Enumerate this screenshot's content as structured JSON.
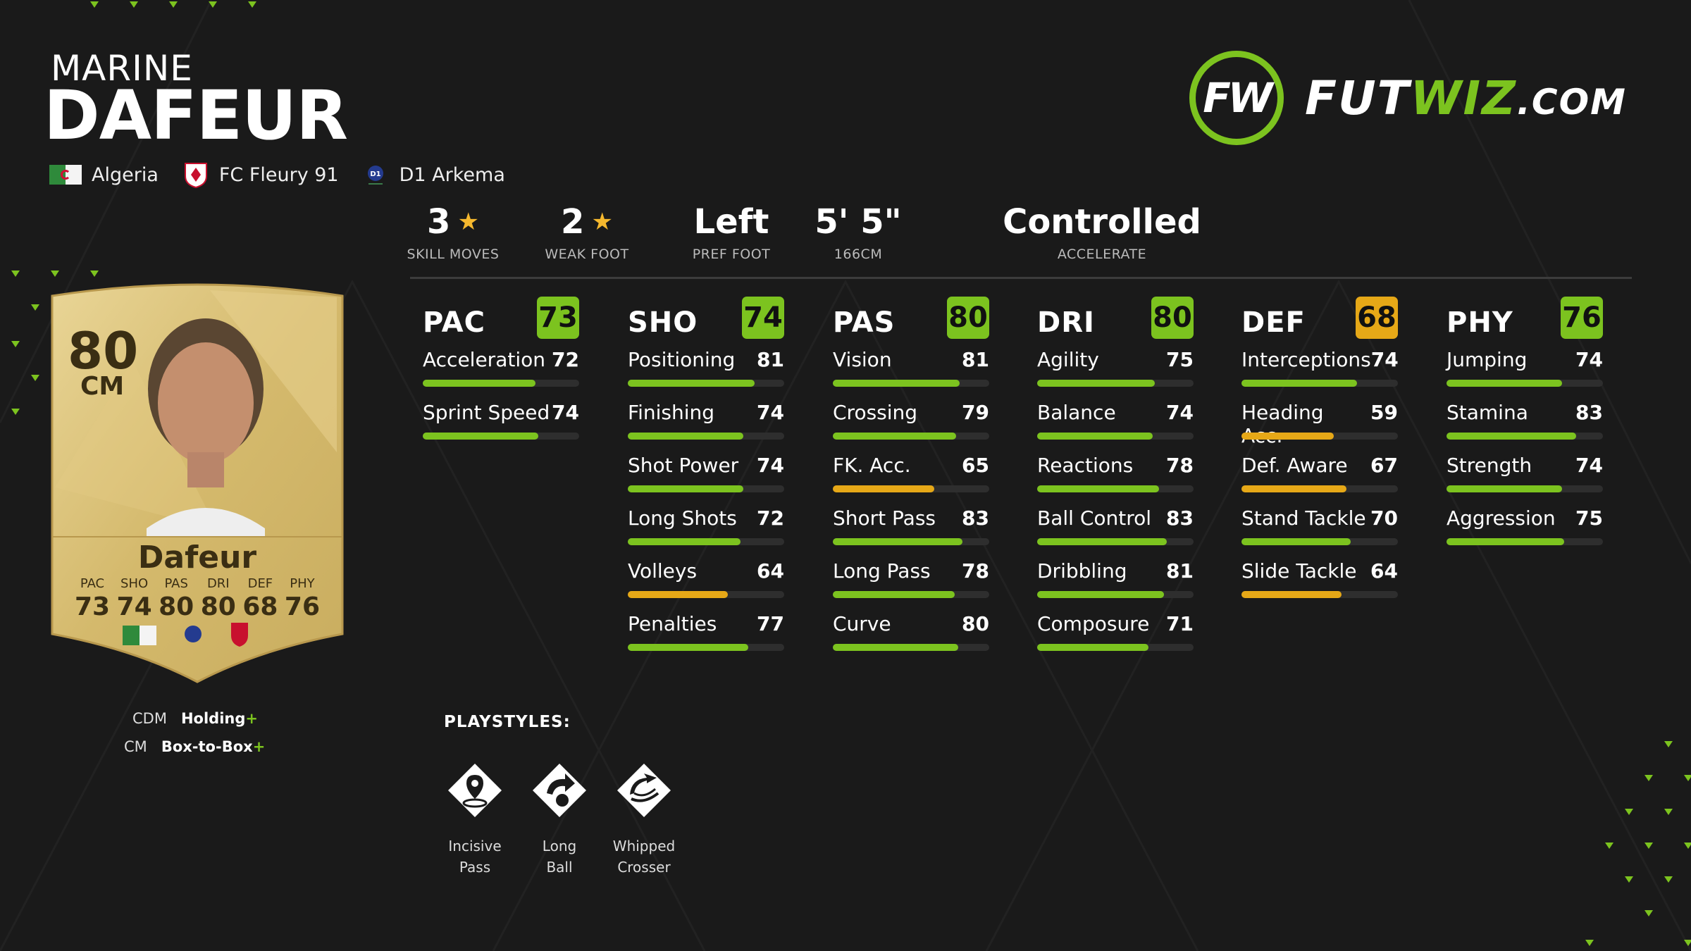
{
  "player": {
    "first_name": "MARINE",
    "last_name": "DAFEUR",
    "nation": "Algeria",
    "club": "FC Fleury 91",
    "league": "D1 Arkema"
  },
  "logo": {
    "brand_a": "FUT",
    "brand_b": "WIZ",
    "brand_c": ".COM",
    "badge": "FW"
  },
  "info": [
    {
      "value": "3",
      "star": true,
      "label": "SKILL MOVES"
    },
    {
      "value": "2",
      "star": true,
      "label": "WEAK FOOT"
    },
    {
      "value": "Left",
      "star": false,
      "label": "PREF FOOT"
    },
    {
      "value": "5' 5\"",
      "star": false,
      "label": "166CM"
    },
    {
      "value": "Controlled",
      "star": false,
      "label": "ACCELERATE"
    }
  ],
  "colors": {
    "green": "#7cc31f",
    "amber": "#e6a817",
    "gold": "#d9bf74"
  },
  "attributes": [
    {
      "name": "PAC",
      "value": 73,
      "stats": [
        {
          "label": "Acceleration",
          "value": 72
        },
        {
          "label": "Sprint Speed",
          "value": 74
        }
      ]
    },
    {
      "name": "SHO",
      "value": 74,
      "stats": [
        {
          "label": "Positioning",
          "value": 81
        },
        {
          "label": "Finishing",
          "value": 74
        },
        {
          "label": "Shot Power",
          "value": 74
        },
        {
          "label": "Long Shots",
          "value": 72
        },
        {
          "label": "Volleys",
          "value": 64
        },
        {
          "label": "Penalties",
          "value": 77
        }
      ]
    },
    {
      "name": "PAS",
      "value": 80,
      "stats": [
        {
          "label": "Vision",
          "value": 81
        },
        {
          "label": "Crossing",
          "value": 79
        },
        {
          "label": "FK. Acc.",
          "value": 65
        },
        {
          "label": "Short Pass",
          "value": 83
        },
        {
          "label": "Long Pass",
          "value": 78
        },
        {
          "label": "Curve",
          "value": 80
        }
      ]
    },
    {
      "name": "DRI",
      "value": 80,
      "stats": [
        {
          "label": "Agility",
          "value": 75
        },
        {
          "label": "Balance",
          "value": 74
        },
        {
          "label": "Reactions",
          "value": 78
        },
        {
          "label": "Ball Control",
          "value": 83
        },
        {
          "label": "Dribbling",
          "value": 81
        },
        {
          "label": "Composure",
          "value": 71
        }
      ]
    },
    {
      "name": "DEF",
      "value": 68,
      "stats": [
        {
          "label": "Interceptions",
          "value": 74
        },
        {
          "label": "Heading Acc.",
          "value": 59
        },
        {
          "label": "Def. Aware",
          "value": 67
        },
        {
          "label": "Stand Tackle",
          "value": 70
        },
        {
          "label": "Slide Tackle",
          "value": 64
        }
      ]
    },
    {
      "name": "PHY",
      "value": 76,
      "stats": [
        {
          "label": "Jumping",
          "value": 74
        },
        {
          "label": "Stamina",
          "value": 83
        },
        {
          "label": "Strength",
          "value": 74
        },
        {
          "label": "Aggression",
          "value": 75
        }
      ]
    }
  ],
  "card": {
    "rating": "80",
    "position": "CM",
    "name": "Dafeur",
    "stats": [
      {
        "label": "PAC",
        "value": "73"
      },
      {
        "label": "SHO",
        "value": "74"
      },
      {
        "label": "PAS",
        "value": "80"
      },
      {
        "label": "DRI",
        "value": "80"
      },
      {
        "label": "DEF",
        "value": "68"
      },
      {
        "label": "PHY",
        "value": "76"
      }
    ]
  },
  "roles": [
    {
      "position": "CDM",
      "role": "Holding",
      "plus": "+"
    },
    {
      "position": "CM",
      "role": "Box-to-Box",
      "plus": "+"
    }
  ],
  "playstyles_title": "PLAYSTYLES:",
  "playstyles": [
    {
      "line1": "Incisive",
      "line2": "Pass",
      "icon": "incisive-pass-icon"
    },
    {
      "line1": "Long",
      "line2": "Ball",
      "icon": "long-ball-icon"
    },
    {
      "line1": "Whipped",
      "line2": "Crosser",
      "icon": "whipped-crosser-icon"
    }
  ]
}
